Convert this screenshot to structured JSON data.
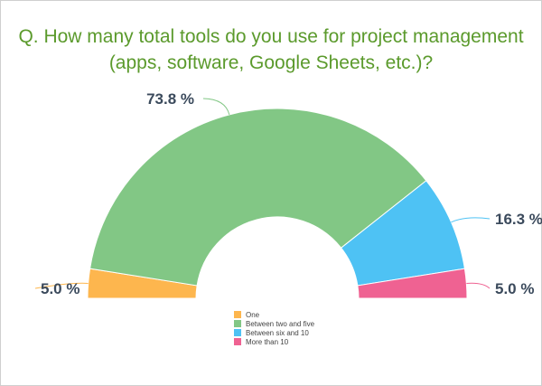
{
  "chart_data": {
    "type": "pie",
    "variant": "semi-donut",
    "title": "Q. How many total tools do you use for project management (apps, software, Google Sheets, etc.)?",
    "title_lines": [
      "Q. How many total tools do you use for project management",
      "(apps, software, Google Sheets, etc.)?"
    ],
    "categories": [
      "One",
      "Between two and five",
      "Between six and 10",
      "More than 10"
    ],
    "values": [
      5.0,
      73.8,
      16.3,
      5.0
    ],
    "data_labels": [
      "5.0 %",
      "73.8 %",
      "16.3 %",
      "5.0 %"
    ],
    "colors": [
      "#FDB64E",
      "#82C785",
      "#4EC2F4",
      "#EF6292"
    ],
    "legend_placement": "bottom"
  }
}
